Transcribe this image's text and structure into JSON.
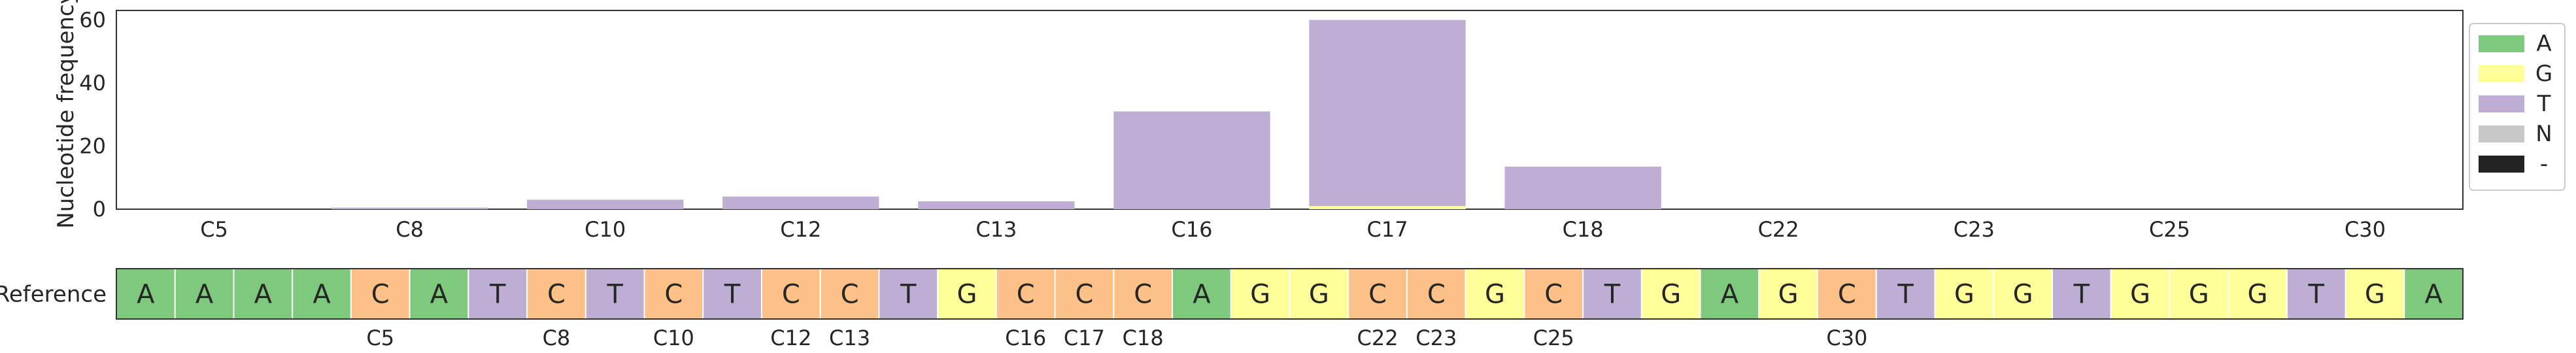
{
  "chart_data": [
    {
      "type": "bar",
      "stacked": true,
      "ylabel": "Nucleotide frequency",
      "xlabel": "",
      "ylim": [
        0,
        63
      ],
      "yticks": [
        0,
        20,
        40,
        60
      ],
      "categories": [
        "C5",
        "C8",
        "C10",
        "C12",
        "C13",
        "C16",
        "C17",
        "C18",
        "C22",
        "C23",
        "C25",
        "C30"
      ],
      "series": [
        {
          "name": "A",
          "color": "#7fc97f",
          "values": [
            0,
            0,
            0,
            0,
            0,
            0,
            0,
            0,
            0,
            0,
            0,
            0
          ]
        },
        {
          "name": "G",
          "color": "#ffff99",
          "values": [
            0,
            0,
            0,
            0,
            0,
            0,
            1,
            0,
            0,
            0,
            0,
            0
          ]
        },
        {
          "name": "T",
          "color": "#beaed4",
          "values": [
            0,
            0.5,
            3,
            4,
            2.5,
            31,
            59,
            13.5,
            0,
            0,
            0,
            0
          ]
        },
        {
          "name": "N",
          "color": "#c8c8c8",
          "values": [
            0,
            0,
            0,
            0,
            0,
            0,
            0,
            0,
            0,
            0,
            0,
            0
          ]
        },
        {
          "name": "-",
          "color": "#222222",
          "values": [
            0,
            0,
            0,
            0,
            0,
            0,
            0,
            0,
            0,
            0,
            0,
            0
          ]
        }
      ],
      "grid": false,
      "legend_position": "right"
    },
    {
      "type": "table",
      "row_label": "Reference",
      "sequence": [
        "A",
        "A",
        "A",
        "A",
        "C",
        "A",
        "T",
        "C",
        "T",
        "C",
        "T",
        "C",
        "C",
        "T",
        "G",
        "C",
        "C",
        "C",
        "A",
        "G",
        "G",
        "C",
        "C",
        "G",
        "C",
        "T",
        "G",
        "A",
        "G",
        "C",
        "T",
        "G",
        "G",
        "T",
        "G",
        "G",
        "G",
        "T",
        "G",
        "A"
      ],
      "base_colors": {
        "A": "#7fc97f",
        "C": "#fdc086",
        "G": "#ffff99",
        "T": "#beaed4"
      },
      "position_labels": [
        {
          "label": "C5",
          "index": 4
        },
        {
          "label": "C8",
          "index": 7
        },
        {
          "label": "C10",
          "index": 9
        },
        {
          "label": "C12",
          "index": 11
        },
        {
          "label": "C13",
          "index": 12
        },
        {
          "label": "C16",
          "index": 15
        },
        {
          "label": "C17",
          "index": 16
        },
        {
          "label": "C18",
          "index": 17
        },
        {
          "label": "C22",
          "index": 21
        },
        {
          "label": "C23",
          "index": 22
        },
        {
          "label": "C25",
          "index": 24
        },
        {
          "label": "C30",
          "index": 29
        }
      ]
    }
  ]
}
